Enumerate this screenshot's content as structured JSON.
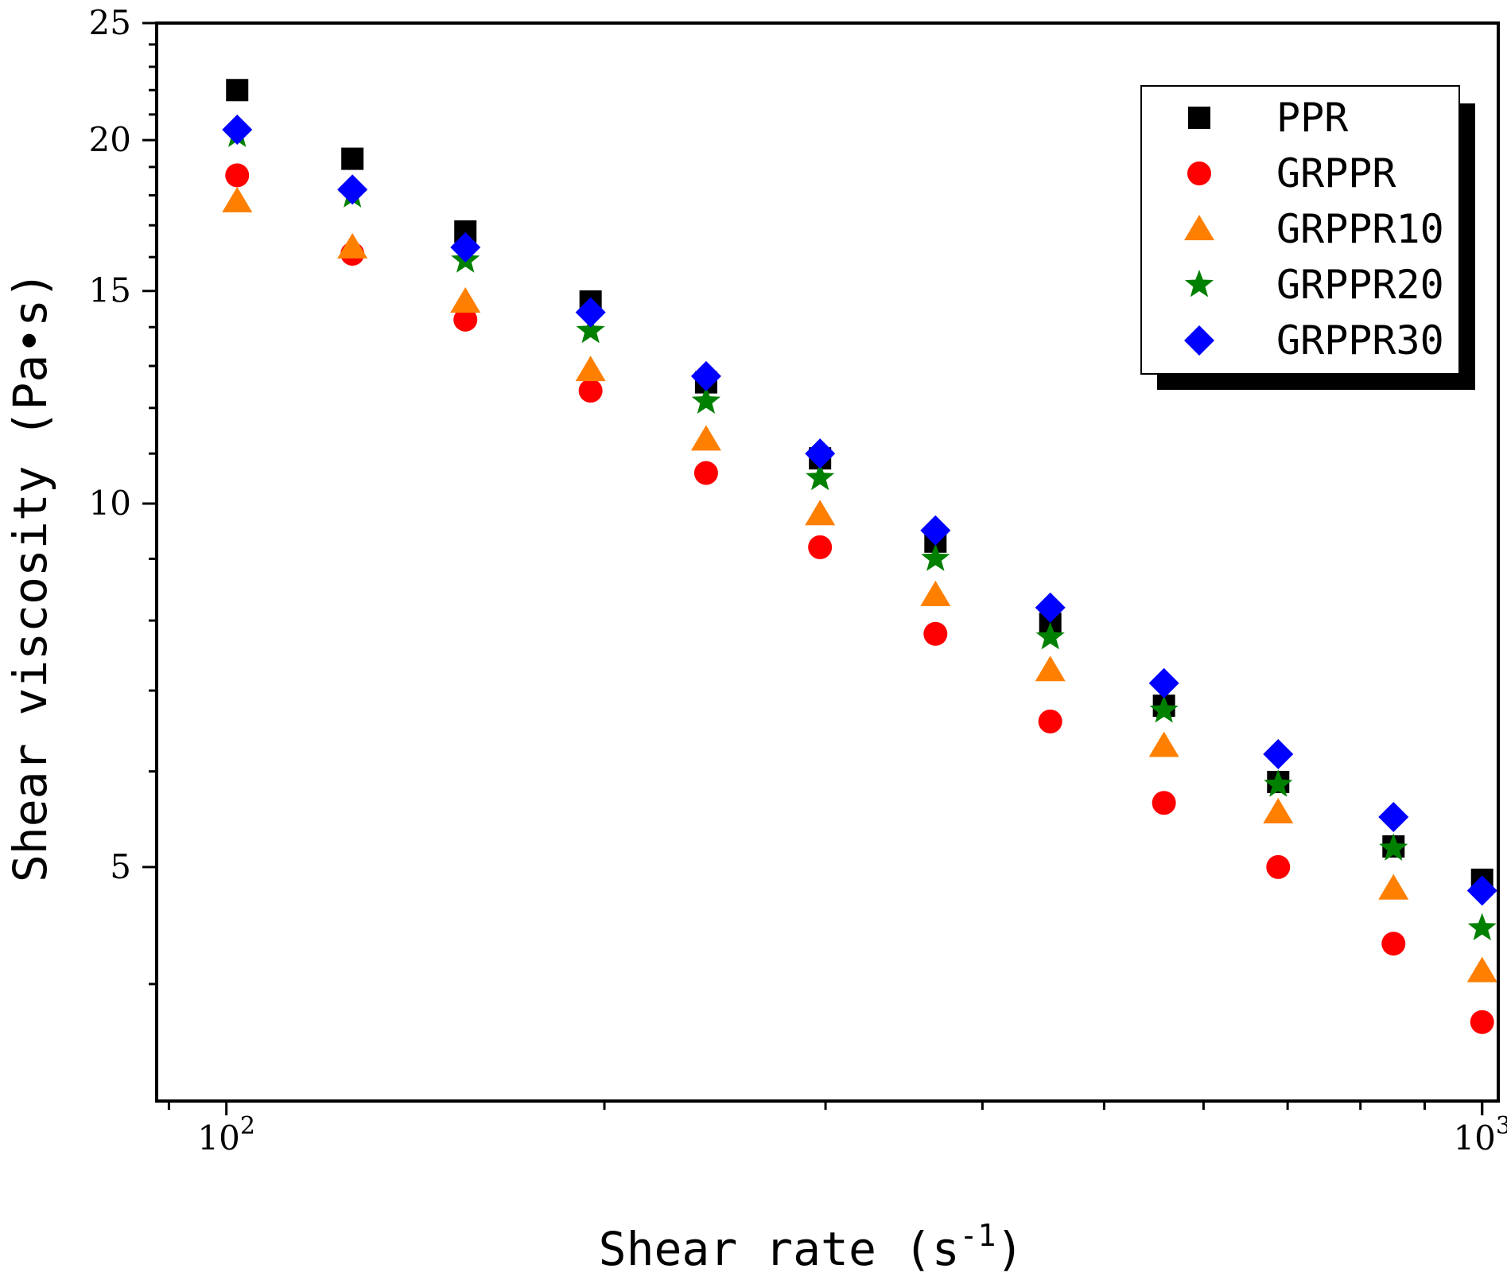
{
  "chart_data": {
    "type": "scatter",
    "title": "",
    "xlabel": "Shear rate (s",
    "xlabel_superscript": "-1",
    "xlabel_close": ")",
    "ylabel": "Shear viscosity (Pa•s)",
    "xscale": "log",
    "yscale": "log",
    "xlim": [
      88,
      1030
    ],
    "ylim": [
      3.2,
      25
    ],
    "x_ticks": [
      {
        "value": 100,
        "base": "10",
        "exp": "2"
      },
      {
        "value": 1000,
        "base": "10",
        "exp": "3"
      }
    ],
    "y_ticks": [
      5,
      10,
      15,
      20,
      25
    ],
    "legend_position": "top-right",
    "x": [
      102,
      126,
      155,
      195,
      241,
      297,
      367,
      453,
      558,
      688,
      850,
      1000
    ],
    "series": [
      {
        "name": "PPR",
        "marker": "square",
        "color": "#000000",
        "values": [
          22.0,
          19.3,
          16.8,
          14.7,
          12.6,
          10.9,
          9.3,
          7.95,
          6.8,
          5.88,
          5.2,
          4.88
        ]
      },
      {
        "name": "GRPPR",
        "marker": "circle",
        "color": "#ff0000",
        "values": [
          18.7,
          16.1,
          14.2,
          12.4,
          10.6,
          9.2,
          7.8,
          6.6,
          5.65,
          5.0,
          4.32,
          3.72
        ]
      },
      {
        "name": "GRPPR10",
        "marker": "triangle",
        "color": "#ff7f00",
        "values": [
          17.8,
          16.3,
          14.7,
          12.9,
          11.3,
          9.8,
          8.4,
          7.28,
          6.3,
          5.55,
          4.8,
          4.1
        ]
      },
      {
        "name": "GRPPR20",
        "marker": "star",
        "color": "#008000",
        "values": [
          20.2,
          18.0,
          15.9,
          13.9,
          12.15,
          10.5,
          9.0,
          7.75,
          6.74,
          5.85,
          5.18,
          4.45
        ]
      },
      {
        "name": "GRPPR30",
        "marker": "diamond",
        "color": "#0000ff",
        "values": [
          20.4,
          18.2,
          16.3,
          14.4,
          12.75,
          11.0,
          9.5,
          8.2,
          7.1,
          6.2,
          5.5,
          4.78
        ]
      }
    ]
  }
}
